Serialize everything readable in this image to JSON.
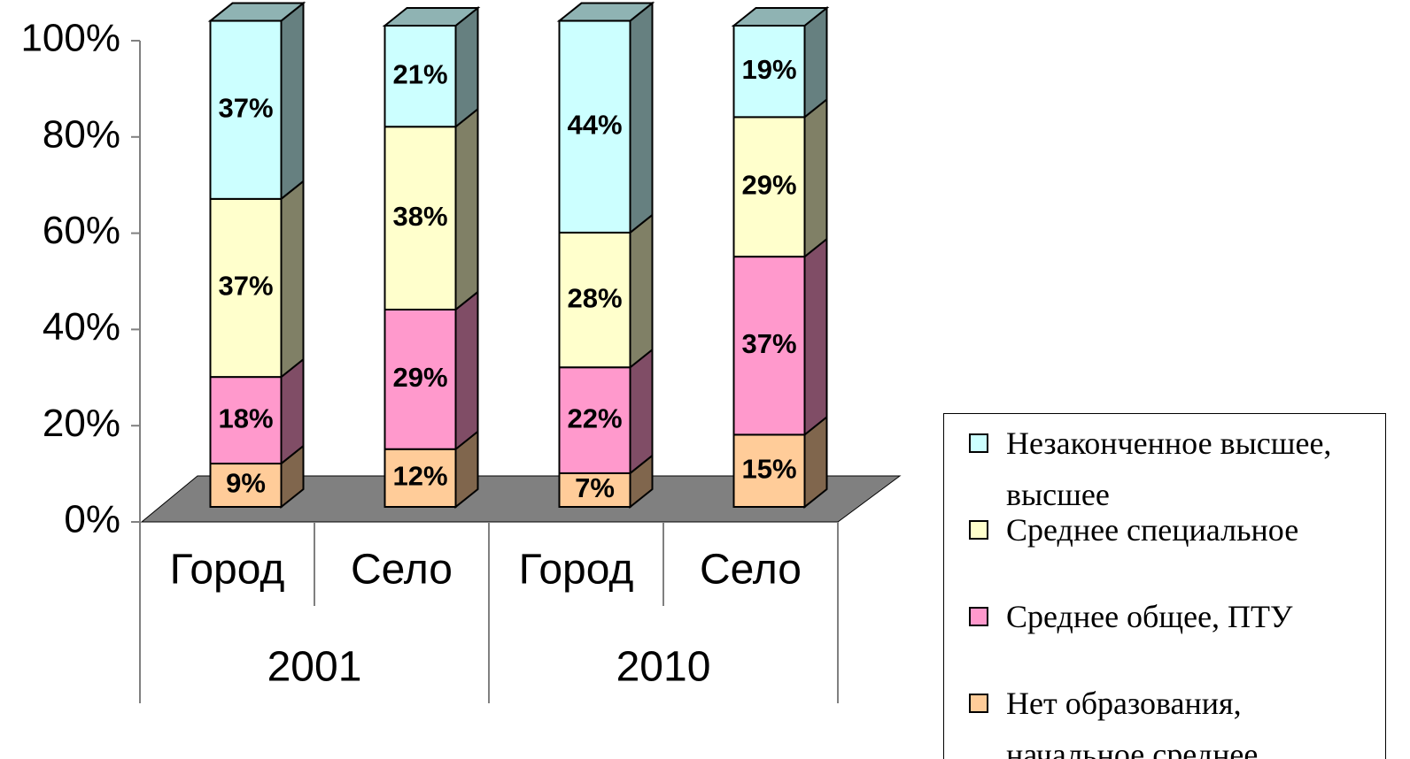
{
  "chart_data": {
    "type": "bar",
    "stacked": true,
    "categories": [
      "Город",
      "Село",
      "Город",
      "Село"
    ],
    "category_groups": [
      "2001",
      "2010"
    ],
    "ylim": [
      0,
      100
    ],
    "yticks": [
      {
        "value": 0,
        "label": "0%"
      },
      {
        "value": 20,
        "label": "20%"
      },
      {
        "value": 40,
        "label": "40%"
      },
      {
        "value": 60,
        "label": "60%"
      },
      {
        "value": 80,
        "label": "80%"
      },
      {
        "value": 100,
        "label": "100%"
      }
    ],
    "series": [
      {
        "name": "Нет образования, начальное среднее",
        "color": "#ffcc99",
        "values": [
          9,
          12,
          7,
          15
        ],
        "value_labels": [
          "9%",
          "12%",
          "7%",
          "15%"
        ]
      },
      {
        "name": "Среднее общее, ПТУ",
        "color": "#ff99cc",
        "values": [
          18,
          29,
          22,
          37
        ],
        "value_labels": [
          "18%",
          "29%",
          "22%",
          "37%"
        ]
      },
      {
        "name": "Среднее специальное",
        "color": "#ffffcc",
        "values": [
          37,
          38,
          28,
          29
        ],
        "value_labels": [
          "37%",
          "38%",
          "28%",
          "29%"
        ]
      },
      {
        "name": "Незаконченное высшее, высшее",
        "color": "#ccffff",
        "values": [
          37,
          21,
          44,
          19
        ],
        "value_labels": [
          "37%",
          "21%",
          "44%",
          "19%"
        ]
      }
    ]
  }
}
